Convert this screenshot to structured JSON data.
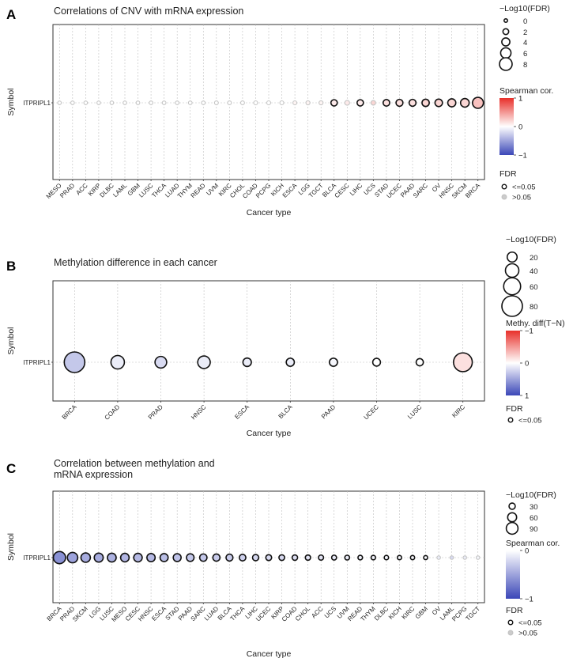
{
  "chart_data": [
    {
      "panel": "A",
      "type": "scatter",
      "title": "Correlations of CNV with mRNA expression",
      "xlabel": "Cancer type",
      "ylabel": "Symbol",
      "symbol": "ITPRIPL1",
      "categories": [
        "MESO",
        "PRAD",
        "ACC",
        "KIRP",
        "DLBC",
        "LAML",
        "GBM",
        "LUSC",
        "THCA",
        "LUAD",
        "THYM",
        "READ",
        "UVM",
        "KIRC",
        "CHOL",
        "COAD",
        "PCPG",
        "KICH",
        "ESCA",
        "LGG",
        "TGCT",
        "BLCA",
        "CESC",
        "LIHC",
        "UCS",
        "STAD",
        "UCEC",
        "PAAD",
        "SARC",
        "OV",
        "HNSC",
        "SKCM",
        "BRCA"
      ],
      "neglog10_fdr": [
        0.1,
        0.1,
        0.1,
        0.1,
        0.1,
        0.1,
        0.2,
        0.2,
        0.2,
        0.2,
        0.2,
        0.2,
        0.3,
        0.3,
        0.3,
        0.4,
        0.4,
        0.4,
        0.4,
        0.5,
        0.5,
        2.5,
        1.2,
        2.5,
        1.0,
        2.7,
        3.0,
        3.0,
        3.3,
        3.5,
        4.0,
        4.5,
        6.5
      ],
      "spearman_cor": [
        0.0,
        0.0,
        0.0,
        0.0,
        0.0,
        0.0,
        0.0,
        0.0,
        0.0,
        0.0,
        0.0,
        0.0,
        0.0,
        0.0,
        0.0,
        0.0,
        0.0,
        0.0,
        0.05,
        0.05,
        0.05,
        0.1,
        0.1,
        0.1,
        0.2,
        0.15,
        0.15,
        0.15,
        0.2,
        0.2,
        0.2,
        0.2,
        0.3
      ],
      "fdr_significant": [
        false,
        false,
        false,
        false,
        false,
        false,
        false,
        false,
        false,
        false,
        false,
        false,
        false,
        false,
        false,
        false,
        false,
        false,
        false,
        false,
        false,
        true,
        false,
        true,
        false,
        true,
        true,
        true,
        true,
        true,
        true,
        true,
        true
      ],
      "size_legend": {
        "title": "−Log10(FDR)",
        "values": [
          0,
          2,
          4,
          6,
          8
        ],
        "labels": [
          "0",
          "2",
          "4",
          "6",
          "8"
        ]
      },
      "color_legend": {
        "title": "Spearman cor.",
        "range": [
          -1,
          1
        ],
        "labels": [
          "1",
          "0",
          "−1"
        ]
      },
      "fdr_legend": {
        "title": "FDR",
        "labels": [
          "<=0.05",
          ">0.05"
        ]
      }
    },
    {
      "panel": "B",
      "type": "scatter",
      "title": "Methylation difference in each cancer",
      "xlabel": "Cancer type",
      "ylabel": "Symbol",
      "symbol": "ITPRIPL1",
      "categories": [
        "BRCA",
        "COAD",
        "PRAD",
        "HNSC",
        "ESCA",
        "BLCA",
        "PAAD",
        "UCEC",
        "LUSC",
        "KIRC"
      ],
      "neglog10_fdr": [
        80,
        40,
        30,
        35,
        12,
        10,
        10,
        8,
        5,
        70
      ],
      "methy_diff": [
        0.3,
        0.1,
        0.2,
        0.1,
        0.1,
        0.1,
        0.05,
        0.0,
        0.0,
        -0.15
      ],
      "fdr_significant": [
        true,
        true,
        true,
        true,
        true,
        true,
        true,
        true,
        true,
        true
      ],
      "size_legend": {
        "title": "−Log10(FDR)",
        "values": [
          20,
          40,
          60,
          80
        ],
        "labels": [
          "20",
          "40",
          "60",
          "80"
        ]
      },
      "color_legend": {
        "title": "Methy. diff(T−N)",
        "range": [
          -1,
          1
        ],
        "labels": [
          "−1",
          "0",
          "1"
        ]
      },
      "fdr_legend": {
        "title": "FDR",
        "labels": [
          "<=0.05"
        ]
      }
    },
    {
      "panel": "C",
      "type": "scatter",
      "title": "Correlation between methylation and mRNA expression",
      "title_lines": [
        "Correlation between methylation and",
        "mRNA expression"
      ],
      "xlabel": "Cancer type",
      "ylabel": "Symbol",
      "symbol": "ITPRIPL1",
      "categories": [
        "BRCA",
        "PRAD",
        "SKCM",
        "LGG",
        "LUSC",
        "MESO",
        "CESC",
        "HNSC",
        "ESCA",
        "STAD",
        "PAAD",
        "SARC",
        "LUAD",
        "BLCA",
        "THCA",
        "LIHC",
        "UCEC",
        "KIRP",
        "COAD",
        "CHOL",
        "ACC",
        "UCS",
        "UVM",
        "READ",
        "THYM",
        "DLBC",
        "KICH",
        "KIRC",
        "GBM",
        "OV",
        "LAML",
        "PCPG",
        "TGCT"
      ],
      "neglog10_fdr": [
        95,
        75,
        65,
        60,
        58,
        55,
        55,
        52,
        50,
        48,
        45,
        42,
        40,
        38,
        34,
        30,
        26,
        24,
        22,
        20,
        18,
        16,
        14,
        12,
        11,
        10,
        9,
        8,
        6,
        1,
        1,
        0.5,
        0.5
      ],
      "spearman_cor": [
        -0.6,
        -0.5,
        -0.45,
        -0.45,
        -0.42,
        -0.4,
        -0.38,
        -0.38,
        -0.35,
        -0.33,
        -0.3,
        -0.3,
        -0.28,
        -0.27,
        -0.25,
        -0.22,
        -0.2,
        -0.2,
        -0.18,
        -0.15,
        -0.15,
        -0.12,
        -0.1,
        -0.08,
        -0.07,
        -0.06,
        -0.05,
        -0.05,
        -0.04,
        -0.1,
        -0.2,
        -0.1,
        -0.05
      ],
      "fdr_significant": [
        true,
        true,
        true,
        true,
        true,
        true,
        true,
        true,
        true,
        true,
        true,
        true,
        true,
        true,
        true,
        true,
        true,
        true,
        true,
        true,
        true,
        true,
        true,
        true,
        true,
        true,
        true,
        true,
        true,
        false,
        false,
        false,
        false
      ],
      "size_legend": {
        "title": "−Log10(FDR)",
        "values": [
          30,
          60,
          90
        ],
        "labels": [
          "30",
          "60",
          "90"
        ]
      },
      "color_legend": {
        "title": "Spearman cor.",
        "range": [
          -1,
          0
        ],
        "labels": [
          "0",
          "−1"
        ]
      },
      "fdr_legend": {
        "title": "FDR",
        "labels": [
          "<=0.05",
          ">0.05"
        ]
      }
    }
  ]
}
